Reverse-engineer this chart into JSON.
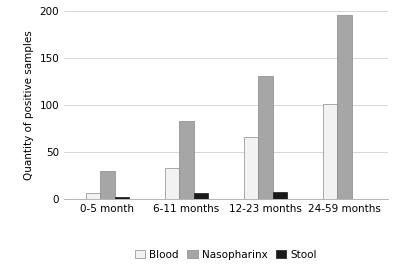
{
  "categories": [
    "0-5 month",
    "6-11 months",
    "12-23 months",
    "24-59 months"
  ],
  "series": {
    "Blood": [
      6,
      33,
      66,
      101
    ],
    "Nasopharinx": [
      30,
      83,
      131,
      195
    ],
    "Stool": [
      2,
      6,
      7,
      0
    ]
  },
  "colors": {
    "Blood": "#f2f2f2",
    "Nasopharinx": "#a6a6a6",
    "Stool": "#1a1a1a"
  },
  "edgecolors": {
    "Blood": "#888888",
    "Nasopharinx": "#888888",
    "Stool": "#1a1a1a"
  },
  "ylabel": "Quantity of positive samples",
  "ylim": [
    0,
    200
  ],
  "yticks": [
    0,
    50,
    100,
    150,
    200
  ],
  "legend_labels": [
    "Blood",
    "Nasopharinx",
    "Stool"
  ],
  "bar_width": 0.18,
  "background_color": "#ffffff",
  "grid_color": "#d0d0d0",
  "ylabel_fontsize": 7.5,
  "tick_fontsize": 7.5,
  "legend_fontsize": 7.5
}
